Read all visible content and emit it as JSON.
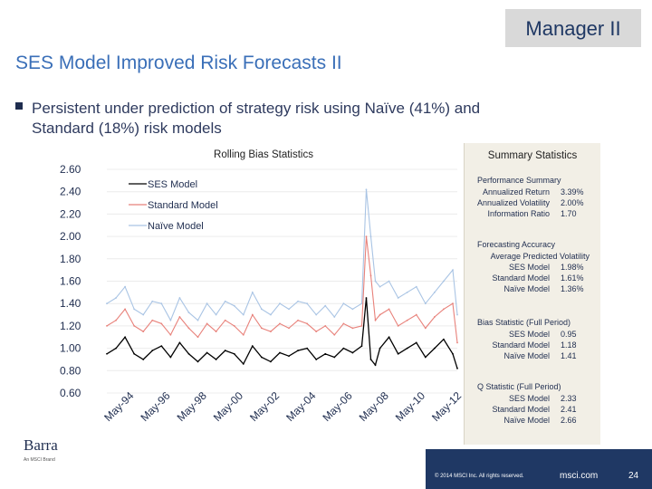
{
  "header": {
    "tag": "Manager II"
  },
  "title": "SES Model Improved Risk Forecasts II",
  "bullet": {
    "line1": "Persistent under prediction of strategy risk using Naïve (41%) and",
    "line2": "Standard (18%) risk models"
  },
  "chart_data": {
    "type": "line",
    "title": "Rolling Bias Statistics",
    "xlabel": "",
    "ylabel": "",
    "ylim": [
      0.6,
      2.6
    ],
    "yticks": [
      "2.60",
      "2.40",
      "2.20",
      "2.00",
      "1.80",
      "1.60",
      "1.40",
      "1.20",
      "1.00",
      "0.80",
      "0.60"
    ],
    "xticks": [
      "May-94",
      "May-96",
      "May-98",
      "May-00",
      "May-02",
      "May-04",
      "May-06",
      "May-08",
      "May-10",
      "May-12"
    ],
    "legend": [
      "SES Model",
      "Standard Model",
      "Naïve Model"
    ],
    "legend_position": "top-left",
    "x": [
      1994.0,
      1994.5,
      1995.0,
      1995.5,
      1996.0,
      1996.5,
      1997.0,
      1997.5,
      1998.0,
      1998.5,
      1999.0,
      1999.5,
      2000.0,
      2000.5,
      2001.0,
      2001.5,
      2002.0,
      2002.5,
      2003.0,
      2003.5,
      2004.0,
      2004.5,
      2005.0,
      2005.5,
      2006.0,
      2006.5,
      2007.0,
      2007.5,
      2008.0,
      2008.25,
      2008.5,
      2008.75,
      2009.0,
      2009.5,
      2010.0,
      2010.5,
      2011.0,
      2011.5,
      2012.0,
      2012.5,
      2013.0,
      2013.25
    ],
    "series": [
      {
        "name": "SES Model",
        "color": "#000000",
        "values": [
          0.95,
          1.0,
          1.1,
          0.95,
          0.9,
          0.98,
          1.02,
          0.92,
          1.05,
          0.95,
          0.88,
          0.96,
          0.9,
          0.98,
          0.95,
          0.86,
          1.02,
          0.92,
          0.88,
          0.96,
          0.93,
          0.98,
          1.0,
          0.9,
          0.95,
          0.92,
          1.0,
          0.96,
          1.02,
          1.45,
          0.9,
          0.85,
          1.0,
          1.1,
          0.95,
          1.0,
          1.05,
          0.92,
          1.0,
          1.08,
          0.95,
          0.82
        ]
      },
      {
        "name": "Standard Model",
        "color": "#e8817a",
        "values": [
          1.2,
          1.25,
          1.35,
          1.2,
          1.15,
          1.25,
          1.22,
          1.12,
          1.28,
          1.18,
          1.1,
          1.22,
          1.15,
          1.25,
          1.2,
          1.12,
          1.3,
          1.18,
          1.15,
          1.22,
          1.18,
          1.25,
          1.22,
          1.15,
          1.2,
          1.12,
          1.22,
          1.18,
          1.2,
          2.0,
          1.65,
          1.25,
          1.3,
          1.35,
          1.2,
          1.25,
          1.3,
          1.18,
          1.28,
          1.35,
          1.4,
          1.05
        ]
      },
      {
        "name": "Naïve Model",
        "color": "#a9c4e4",
        "values": [
          1.4,
          1.45,
          1.55,
          1.35,
          1.3,
          1.42,
          1.4,
          1.25,
          1.45,
          1.32,
          1.25,
          1.4,
          1.3,
          1.42,
          1.38,
          1.3,
          1.5,
          1.35,
          1.3,
          1.4,
          1.35,
          1.42,
          1.4,
          1.3,
          1.38,
          1.28,
          1.4,
          1.35,
          1.4,
          2.42,
          2.0,
          1.6,
          1.55,
          1.6,
          1.45,
          1.5,
          1.55,
          1.4,
          1.5,
          1.6,
          1.7,
          1.3
        ]
      }
    ]
  },
  "summary": {
    "title": "Summary Statistics",
    "sections": [
      {
        "heading": "Performance Summary",
        "rows": [
          {
            "label": "Annualized Return",
            "value": "3.39%"
          },
          {
            "label": "Annualized Volatility",
            "value": "2.00%"
          },
          {
            "label": "Information Ratio",
            "value": "1.70"
          }
        ]
      },
      {
        "heading": "Forecasting Accuracy",
        "rows": [
          {
            "label": "Average Predicted Volatility",
            "value": ""
          },
          {
            "label": "SES Model",
            "value": "1.98%"
          },
          {
            "label": "Standard Model",
            "value": "1.61%"
          },
          {
            "label": "Naïve Model",
            "value": "1.36%"
          }
        ]
      },
      {
        "heading": "Bias Statistic (Full Period)",
        "rows": [
          {
            "label": "SES Model",
            "value": "0.95"
          },
          {
            "label": "Standard Model",
            "value": "1.18"
          },
          {
            "label": "Naïve Model",
            "value": "1.41"
          }
        ]
      },
      {
        "heading": "Q Statistic (Full Period)",
        "rows": [
          {
            "label": "SES Model",
            "value": "2.33"
          },
          {
            "label": "Standard Model",
            "value": "2.41"
          },
          {
            "label": "Naïve Model",
            "value": "2.66"
          }
        ]
      }
    ]
  },
  "logo": {
    "name": "Barra",
    "sub": "An MSCI Brand"
  },
  "footer": {
    "copyright": "© 2014 MSCI Inc. All rights reserved.",
    "site": "msci.com",
    "page": "24"
  }
}
